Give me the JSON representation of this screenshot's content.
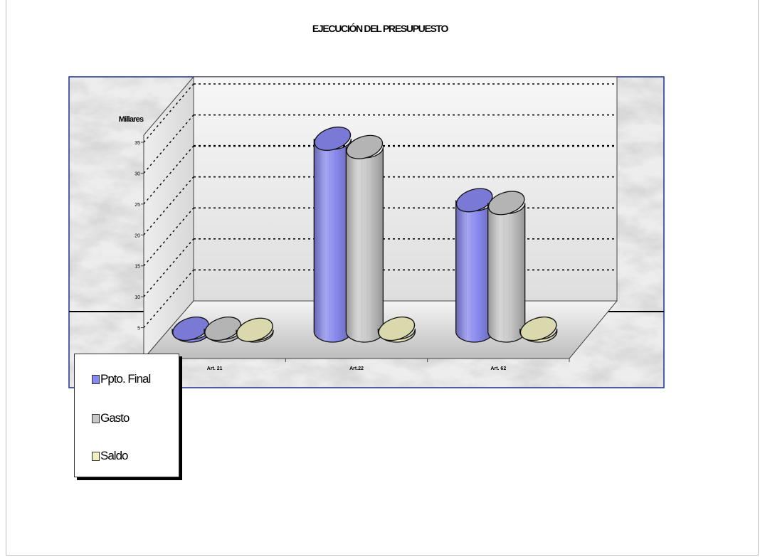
{
  "chart_data": {
    "type": "bar",
    "title": "EJECUCIÓN DEL PRESUPUESTO",
    "ylabel": "Millares",
    "ylim": [
      0,
      35
    ],
    "yticks": [
      5,
      10,
      15,
      20,
      25,
      30,
      35
    ],
    "categories": [
      "Art. 21",
      "Art.22",
      "Art. 62"
    ],
    "series": [
      {
        "name": "Ppto. Final",
        "color": "#8888ee",
        "values": [
          0.5,
          34.5,
          23.5
        ]
      },
      {
        "name": "Gasto",
        "color": "#c8c8c8",
        "values": [
          0.5,
          33,
          23
        ]
      },
      {
        "name": "Saldo",
        "color": "#f2f0c0",
        "values": [
          0.3,
          0.5,
          0.5
        ]
      }
    ],
    "grid": true,
    "legend_position": "bottom-left",
    "style": "3d-cylinder"
  }
}
